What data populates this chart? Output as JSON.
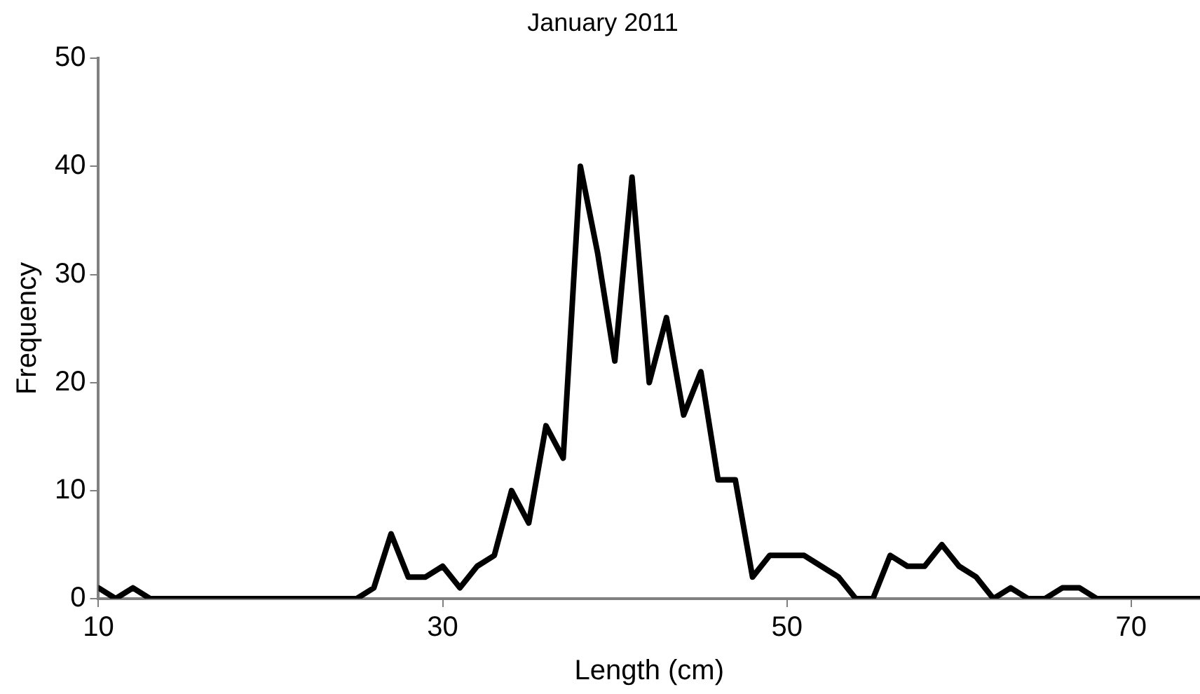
{
  "chart_data": {
    "type": "line",
    "title": "January 2011",
    "xlabel": "Length (cm)",
    "ylabel": "Frequency",
    "x": [
      10,
      11,
      12,
      13,
      14,
      15,
      16,
      17,
      18,
      19,
      20,
      21,
      22,
      23,
      24,
      25,
      26,
      27,
      28,
      29,
      30,
      31,
      32,
      33,
      34,
      35,
      36,
      37,
      38,
      39,
      40,
      41,
      42,
      43,
      44,
      45,
      46,
      47,
      48,
      49,
      50,
      51,
      52,
      53,
      54,
      55,
      56,
      57,
      58,
      59,
      60,
      61,
      62,
      63,
      64,
      65,
      66,
      67,
      68,
      69,
      70,
      71,
      72,
      73,
      74
    ],
    "series": [
      {
        "color": "#000000",
        "values": [
          1,
          0,
          1,
          0,
          0,
          0,
          0,
          0,
          0,
          0,
          0,
          0,
          0,
          0,
          0,
          0,
          1,
          6,
          2,
          2,
          3,
          1,
          3,
          4,
          10,
          7,
          16,
          13,
          40,
          32,
          22,
          39,
          20,
          26,
          17,
          21,
          11,
          11,
          2,
          4,
          4,
          4,
          3,
          2,
          0,
          0,
          4,
          3,
          3,
          5,
          3,
          2,
          0,
          1,
          0,
          0,
          1,
          1,
          0,
          0,
          0,
          0,
          0,
          0,
          0
        ]
      }
    ],
    "xlim": [
      10,
      74
    ],
    "xticks": [
      10,
      30,
      50,
      70
    ],
    "ylim": [
      0,
      50
    ],
    "yticks": [
      0,
      10,
      20,
      30,
      40,
      50
    ],
    "grid": false,
    "legend": false,
    "marker": "none",
    "line_style": "solid"
  }
}
